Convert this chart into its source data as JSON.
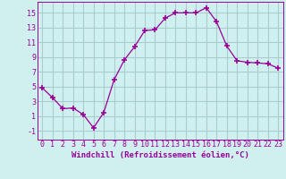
{
  "x": [
    0,
    1,
    2,
    3,
    4,
    5,
    6,
    7,
    8,
    9,
    10,
    11,
    12,
    13,
    14,
    15,
    16,
    17,
    18,
    19,
    20,
    21,
    22,
    23
  ],
  "y": [
    4.8,
    3.5,
    2.0,
    2.1,
    1.2,
    -0.6,
    1.5,
    5.9,
    8.6,
    10.4,
    12.6,
    12.7,
    14.3,
    15.0,
    15.0,
    15.0,
    15.7,
    13.8,
    10.5,
    8.5,
    8.3,
    8.2,
    8.1,
    7.5
  ],
  "line_color": "#990099",
  "marker": "+",
  "marker_size": 4,
  "bg_color": "#d0f0f0",
  "grid_color": "#aacccc",
  "xlabel": "Windchill (Refroidissement éolien,°C)",
  "xlabel_color": "#990099",
  "xlabel_fontsize": 6.5,
  "ytick_labels": [
    "-1",
    "1",
    "3",
    "5",
    "7",
    "9",
    "11",
    "13",
    "15"
  ],
  "ytick_values": [
    -1,
    1,
    3,
    5,
    7,
    9,
    11,
    13,
    15
  ],
  "ylim": [
    -2.2,
    16.5
  ],
  "xlim": [
    -0.5,
    23.5
  ],
  "tick_fontsize": 6.0
}
